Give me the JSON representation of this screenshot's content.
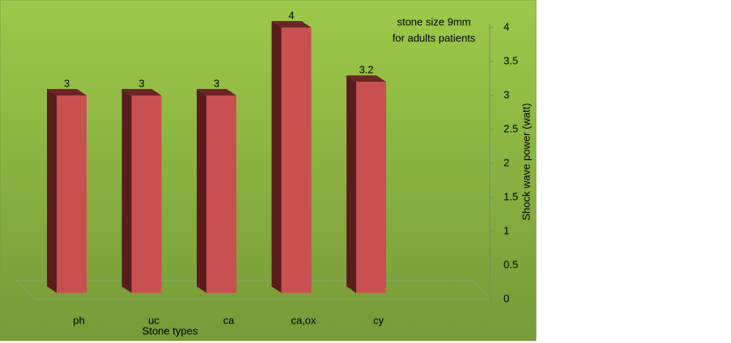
{
  "chart_data": {
    "type": "bar",
    "categories": [
      "ph",
      "uc",
      "ca",
      "ca,ox",
      "cy"
    ],
    "values": [
      3,
      3,
      3,
      4,
      3.2
    ],
    "color": "#c85050",
    "ylim": [
      0,
      4
    ],
    "yticks": [
      0,
      0.5,
      1,
      1.5,
      2,
      2.5,
      3,
      3.5,
      4
    ],
    "y_axis_side": "right",
    "grid": false,
    "xlabel": "Stone types",
    "ylabel": "Shock wave power (watt)",
    "annotations": [
      "stone size 9mm",
      "for adults patients"
    ]
  }
}
